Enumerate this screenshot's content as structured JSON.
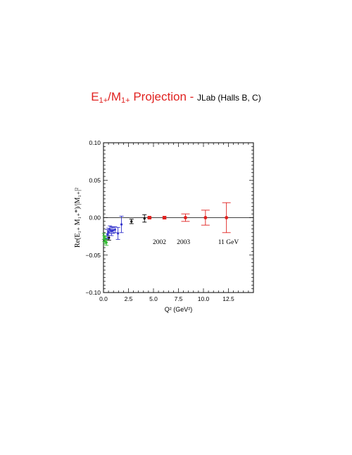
{
  "title": {
    "E": "E",
    "E_sub": "1+",
    "slash": "/M",
    "M_sub": "1+",
    "rest": " Projection - ",
    "lab": "JLab (Halls B, C)"
  },
  "colors": {
    "red": "#e0211f",
    "blue": "#3333cc",
    "green": "#33bb33",
    "black": "#000000"
  },
  "chart_data": {
    "type": "scatter",
    "xlabel": "Q² (GeV²)",
    "ylabel": "Re(E₁₊ M₁₊*)/|M₁₊|²",
    "xlim": [
      0,
      15
    ],
    "ylim": [
      -0.1,
      0.1
    ],
    "xticks": [
      "0.0",
      "2.5",
      "5.0",
      "7.5",
      "10.0",
      "12.5"
    ],
    "xtick_values": [
      0,
      2.5,
      5,
      7.5,
      10,
      12.5
    ],
    "yticks": [
      "0.10",
      "0.05",
      "0.00",
      "−0.05",
      "−0.10"
    ],
    "ytick_values": [
      0.1,
      0.05,
      0,
      -0.05,
      -0.1
    ],
    "reference_line": 0,
    "grid": false,
    "series": [
      {
        "color": "#33bb33",
        "marker": "dot",
        "points": [
          {
            "x": 0.05,
            "y": -0.025,
            "err": 0.004
          },
          {
            "x": 0.1,
            "y": -0.028,
            "err": 0.004
          },
          {
            "x": 0.15,
            "y": -0.031,
            "err": 0.004
          },
          {
            "x": 0.2,
            "y": -0.029,
            "err": 0.004
          },
          {
            "x": 0.3,
            "y": -0.033,
            "err": 0.004
          }
        ]
      },
      {
        "color": "#000000",
        "marker": "dot",
        "points": [
          {
            "x": 0.55,
            "y": -0.027,
            "err": 0.003
          }
        ]
      },
      {
        "color": "#3333cc",
        "marker": "dot",
        "points": [
          {
            "x": 0.4,
            "y": -0.022,
            "err": 0.006
          },
          {
            "x": 0.5,
            "y": -0.019,
            "err": 0.005
          },
          {
            "x": 0.65,
            "y": -0.016,
            "err": 0.005
          },
          {
            "x": 0.8,
            "y": -0.018,
            "err": 0.006
          },
          {
            "x": 0.95,
            "y": -0.017,
            "err": 0.004
          },
          {
            "x": 1.15,
            "y": -0.016,
            "err": 0.004
          },
          {
            "x": 1.45,
            "y": -0.021,
            "err": 0.008
          },
          {
            "x": 1.8,
            "y": -0.009,
            "err": 0.011
          }
        ]
      },
      {
        "color": "#000000",
        "marker": "dot",
        "points": [
          {
            "x": 2.8,
            "y": -0.005,
            "err": 0.003
          },
          {
            "x": 4.1,
            "y": -0.001,
            "err": 0.005
          }
        ]
      },
      {
        "color": "#e0211f",
        "marker": "square",
        "points": [
          {
            "x": 4.6,
            "y": 0.0,
            "err": 0.0012
          },
          {
            "x": 6.1,
            "y": 0.0,
            "err": 0.0015
          }
        ]
      },
      {
        "color": "#e0211f",
        "marker": "dot",
        "points": [
          {
            "x": 8.2,
            "y": 0.0,
            "err": 0.005
          },
          {
            "x": 10.2,
            "y": 0.0,
            "err": 0.01
          },
          {
            "x": 12.3,
            "y": 0.0,
            "err": 0.02
          }
        ]
      }
    ],
    "annotations": [
      {
        "text": "2002",
        "x": 5.6,
        "y": -0.035
      },
      {
        "text": "2003",
        "x": 8.0,
        "y": -0.035
      },
      {
        "text": "11 GeV",
        "x": 12.5,
        "y": -0.035
      }
    ]
  }
}
